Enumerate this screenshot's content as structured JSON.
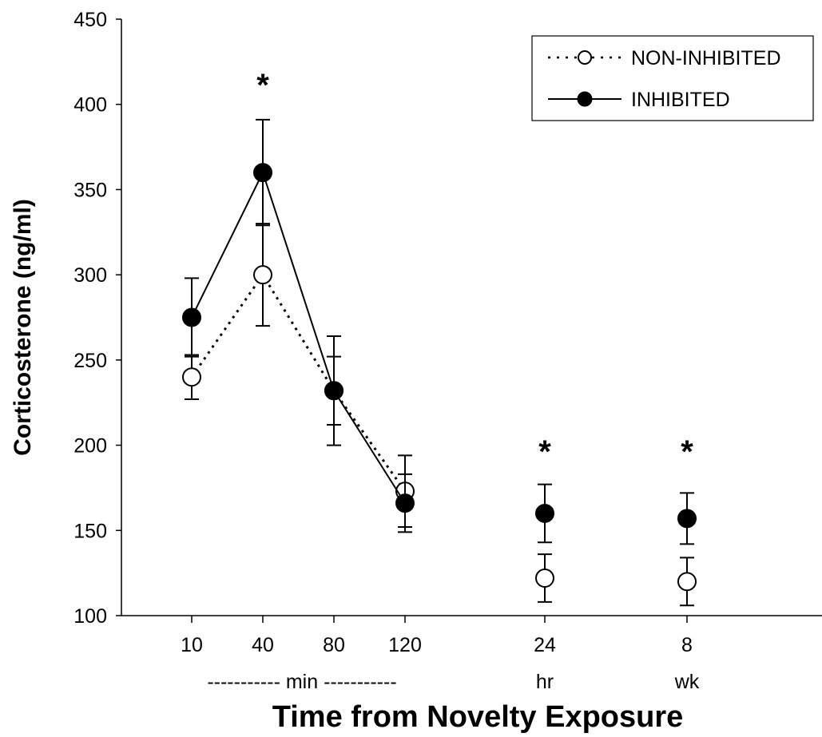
{
  "chart_data": {
    "type": "line",
    "xlabel": "Time from Novelty Exposure",
    "ylabel": "Corticosterone (ng/ml)",
    "ylim": [
      100,
      450
    ],
    "yticks": [
      100,
      150,
      200,
      250,
      300,
      350,
      400,
      450
    ],
    "categories": [
      "10",
      "40",
      "80",
      "120",
      "24",
      "8"
    ],
    "unit_labels": {
      "min": "----------- min -----------",
      "hr": "hr",
      "wk": "wk"
    },
    "legend_position": "top-right",
    "series": [
      {
        "name": "NON-INHIBITED",
        "style": "dotted, open circle",
        "values": [
          240,
          300,
          232,
          173,
          122,
          120
        ],
        "errors": [
          13,
          30,
          32,
          21,
          14,
          14
        ]
      },
      {
        "name": "INHIBITED",
        "style": "solid, filled circle",
        "values": [
          275,
          360,
          232,
          166,
          160,
          157
        ],
        "errors": [
          23,
          31,
          20,
          17,
          17,
          15
        ]
      }
    ],
    "annotations": [
      {
        "category": "40",
        "text": "*"
      },
      {
        "category": "24",
        "text": "*"
      },
      {
        "category": "8",
        "text": "*"
      }
    ]
  }
}
